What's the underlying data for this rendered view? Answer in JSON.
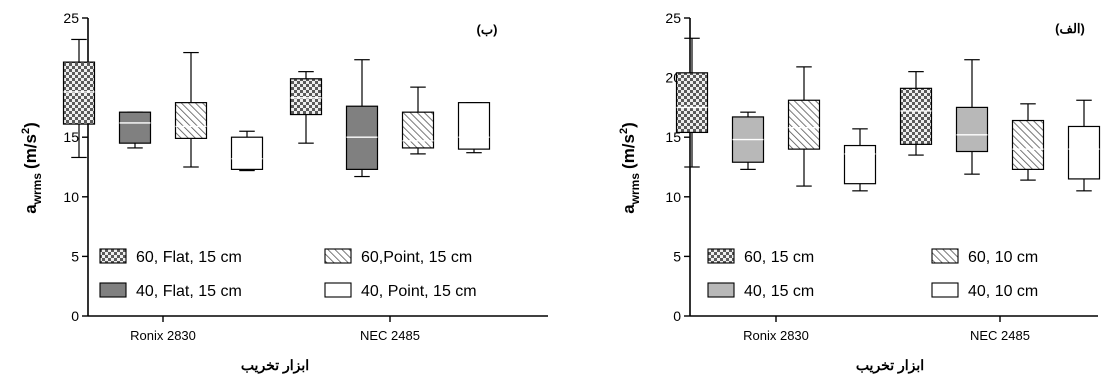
{
  "chart_data": [
    {
      "type": "box",
      "panel_label": "(ب)",
      "xlabel": "ابزار تخریب",
      "ylabel_main": "a",
      "ylabel_sub": "wrms",
      "ylabel_unit": "(m/s",
      "ylabel_sup": "2",
      "ylabel_close": ")",
      "ylim": [
        0,
        25
      ],
      "yticks": [
        "0",
        "5",
        "10",
        "15",
        "20",
        "25"
      ],
      "categories": [
        "Ronix 2830",
        "NEC 2485"
      ],
      "series": [
        {
          "name": "60, Flat, 15 cm",
          "pattern": "checker",
          "boxes": [
            {
              "min": 13.3,
              "q1": 16.1,
              "median": 18.8,
              "q3": 21.3,
              "max": 23.2
            },
            {
              "min": 14.5,
              "q1": 16.9,
              "median": 18.3,
              "q3": 19.9,
              "max": 20.5
            }
          ]
        },
        {
          "name": "40, Flat, 15 cm",
          "pattern": "dark",
          "boxes": [
            {
              "min": 14.1,
              "q1": 14.5,
              "median": 16.2,
              "q3": 17.1,
              "max": 17.1
            },
            {
              "min": 11.7,
              "q1": 12.3,
              "median": 15.0,
              "q3": 17.6,
              "max": 21.5
            }
          ]
        },
        {
          "name": "60,Point, 15 cm",
          "pattern": "hatch",
          "boxes": [
            {
              "min": 12.5,
              "q1": 14.9,
              "median": 15.9,
              "q3": 17.9,
              "max": 22.1
            },
            {
              "min": 13.6,
              "q1": 14.1,
              "median": 14.7,
              "q3": 17.1,
              "max": 19.2
            }
          ]
        },
        {
          "name": "40, Point, 15 cm",
          "pattern": "white",
          "boxes": [
            {
              "min": 12.2,
              "q1": 12.3,
              "median": 13.2,
              "q3": 15.0,
              "max": 15.5
            },
            {
              "min": 13.7,
              "q1": 14.0,
              "median": 15.0,
              "q3": 17.9,
              "max": 17.9
            }
          ]
        }
      ]
    },
    {
      "type": "box",
      "panel_label": "(الف)",
      "xlabel": "ابزار تخریب",
      "ylabel_main": "a",
      "ylabel_sub": "wrms",
      "ylabel_unit": "(m/s",
      "ylabel_sup": "2",
      "ylabel_close": ")",
      "ylim": [
        0,
        25
      ],
      "yticks": [
        "0",
        "5",
        "10",
        "15",
        "20",
        "25"
      ],
      "categories": [
        "Ronix 2830",
        "NEC 2485"
      ],
      "series": [
        {
          "name": "60, 15 cm",
          "pattern": "checker",
          "boxes": [
            {
              "min": 12.5,
              "q1": 15.4,
              "median": 17.5,
              "q3": 20.4,
              "max": 23.3
            },
            {
              "min": 13.5,
              "q1": 14.4,
              "median": 17.2,
              "q3": 19.1,
              "max": 20.5
            }
          ]
        },
        {
          "name": "40, 15 cm",
          "pattern": "light",
          "boxes": [
            {
              "min": 12.3,
              "q1": 12.9,
              "median": 14.8,
              "q3": 16.7,
              "max": 17.1
            },
            {
              "min": 11.9,
              "q1": 13.8,
              "median": 15.2,
              "q3": 17.5,
              "max": 21.5
            }
          ]
        },
        {
          "name": "60, 10 cm",
          "pattern": "hatch",
          "boxes": [
            {
              "min": 10.9,
              "q1": 14.0,
              "median": 15.8,
              "q3": 18.1,
              "max": 20.9
            },
            {
              "min": 11.4,
              "q1": 12.3,
              "median": 14.0,
              "q3": 16.4,
              "max": 17.8
            }
          ]
        },
        {
          "name": "40, 10 cm",
          "pattern": "white",
          "boxes": [
            {
              "min": 10.5,
              "q1": 11.1,
              "median": 13.6,
              "q3": 14.3,
              "max": 15.7
            },
            {
              "min": 10.5,
              "q1": 11.5,
              "median": 14.0,
              "q3": 15.9,
              "max": 18.1
            }
          ]
        }
      ]
    }
  ],
  "colors": {
    "axis": "#000000",
    "checker_light": "#eeeeee",
    "checker_dark": "#5a5a5a",
    "dark_fill": "#808080",
    "light_fill": "#b8b8b8",
    "hatch_bg": "#ffffff",
    "hatch_line": "#555555",
    "white_fill": "#ffffff"
  }
}
